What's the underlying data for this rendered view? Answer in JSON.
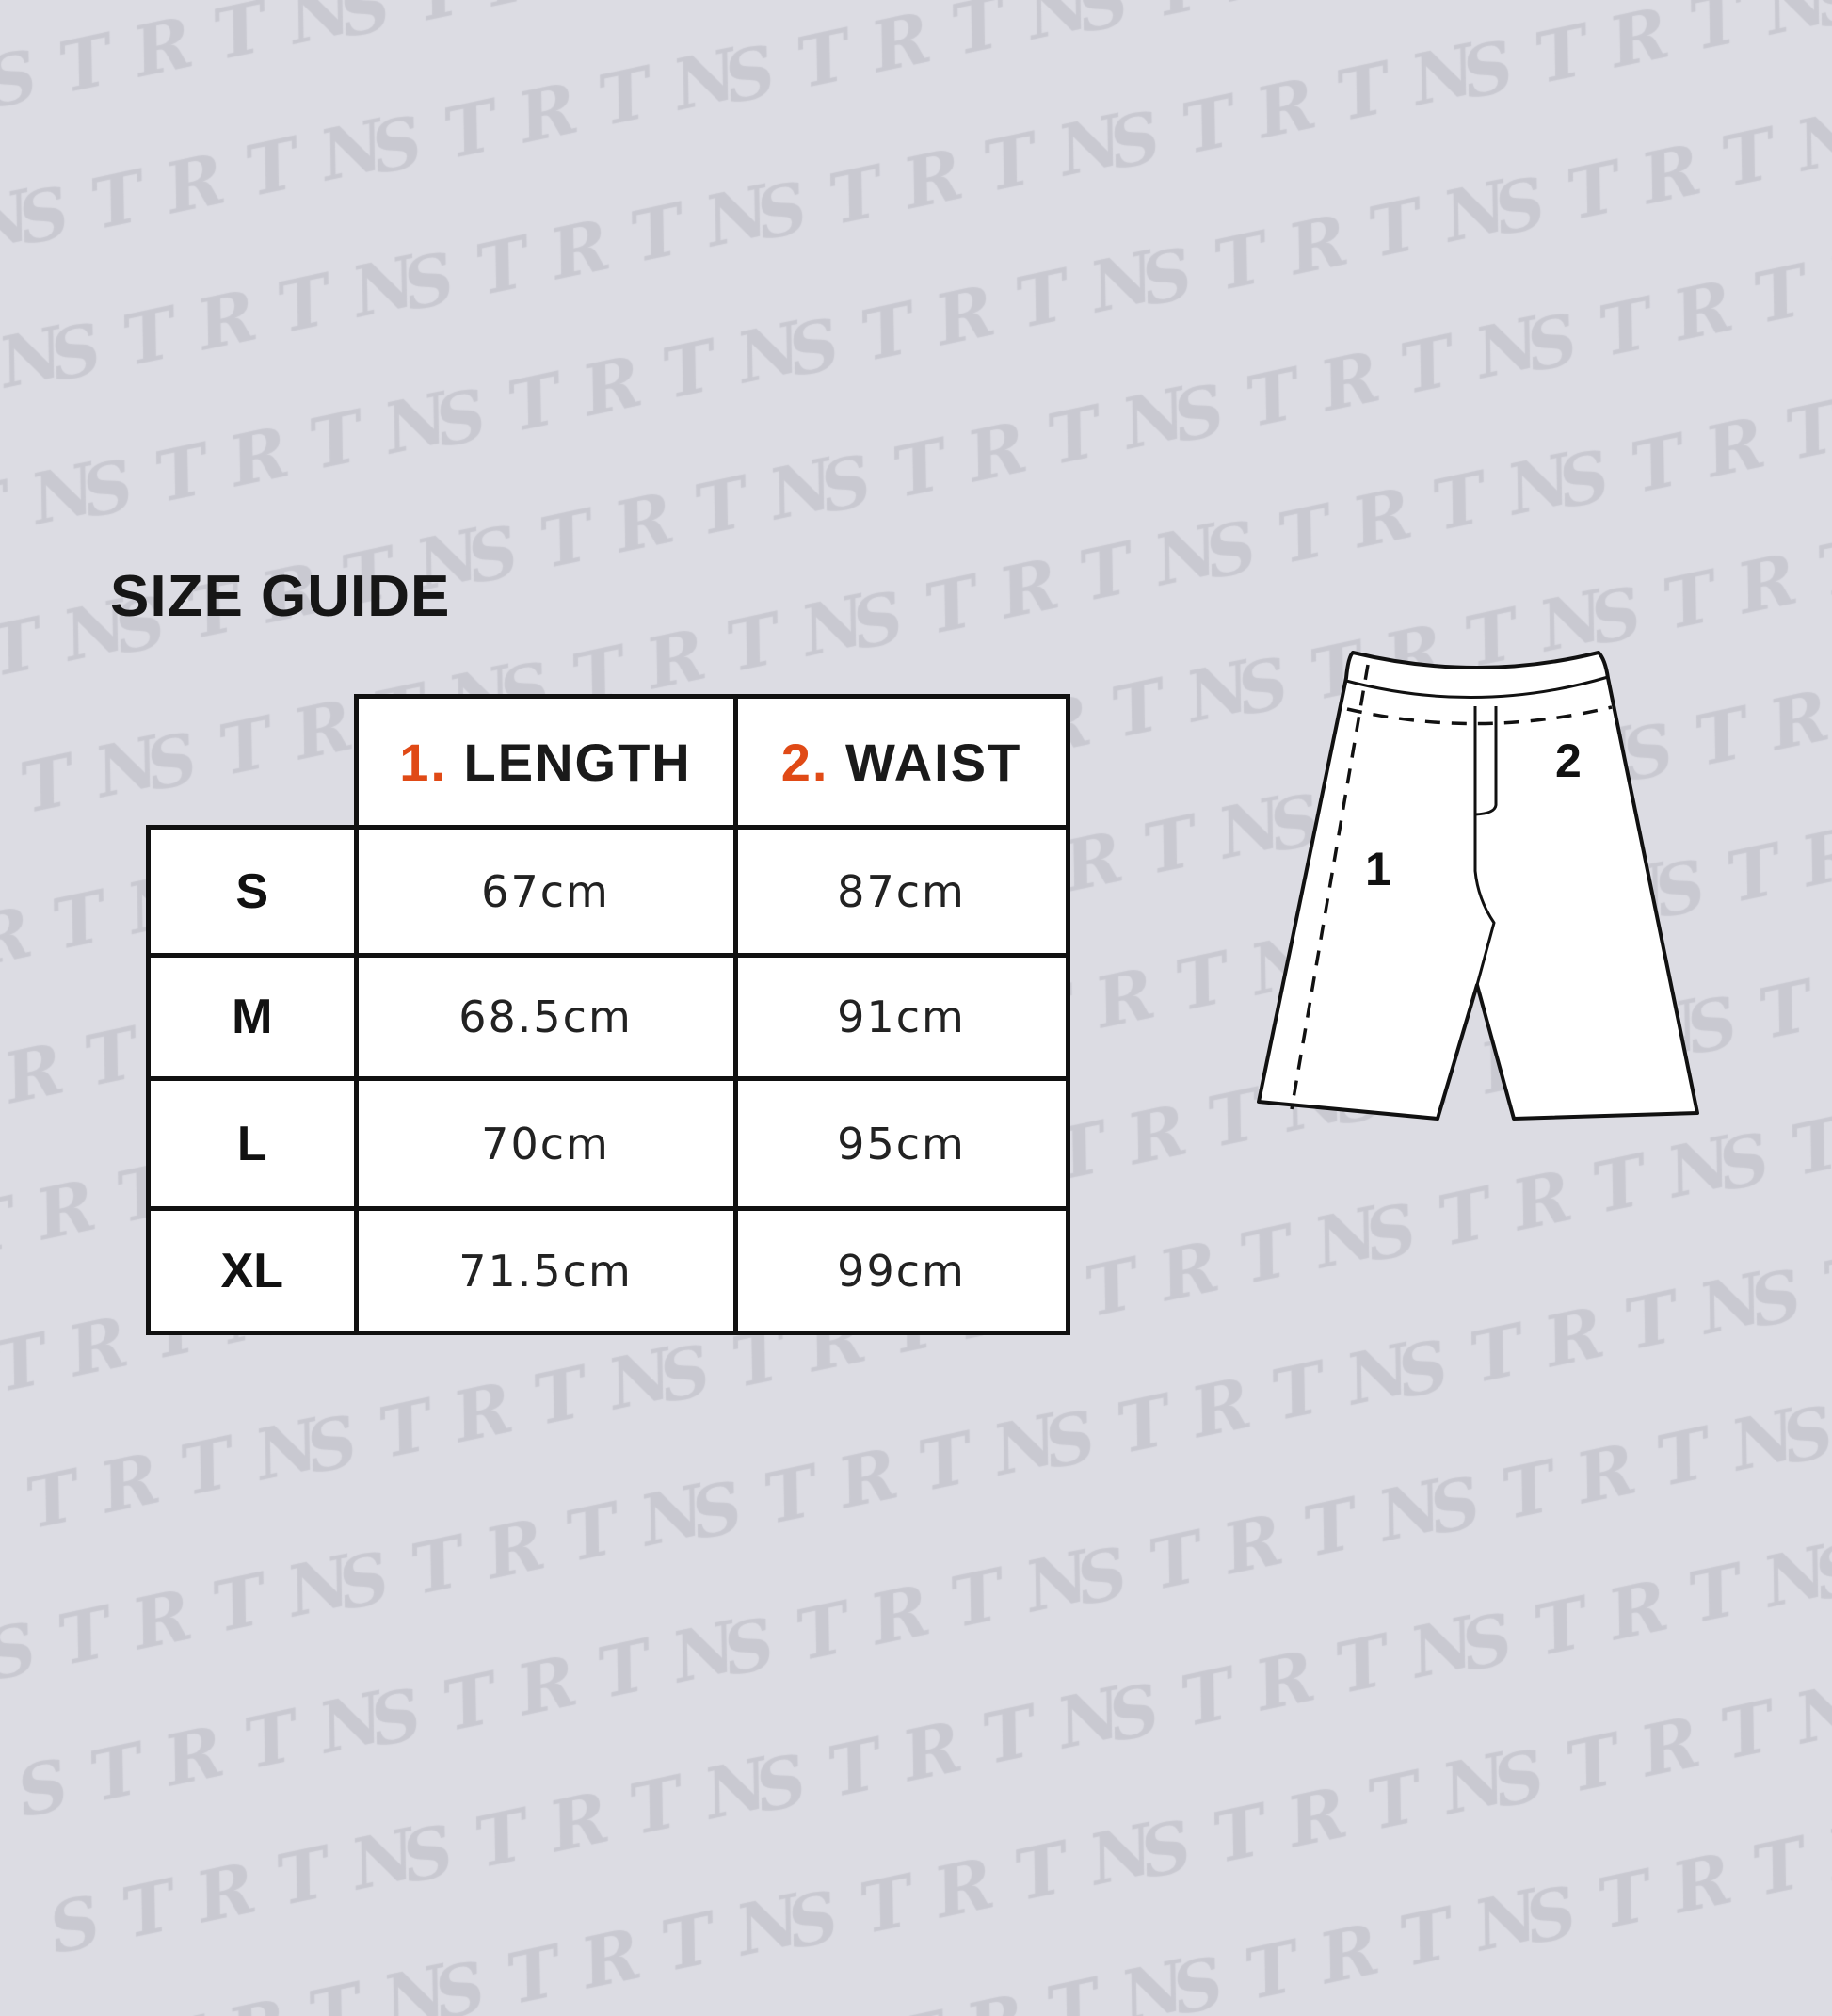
{
  "watermark": "STRTN",
  "title": "SIZE GUIDE",
  "accent_color": "#e04a16",
  "table": {
    "headers": [
      {
        "num": "1.",
        "label": "LENGTH"
      },
      {
        "num": "2.",
        "label": "WAIST"
      }
    ],
    "rows": [
      {
        "size": "S",
        "length": "67cm",
        "waist": "87cm"
      },
      {
        "size": "M",
        "length": "68.5cm",
        "waist": "91cm"
      },
      {
        "size": "L",
        "length": "70cm",
        "waist": "95cm"
      },
      {
        "size": "XL",
        "length": "71.5cm",
        "waist": "99cm"
      }
    ]
  },
  "diagram": {
    "label_length": "1",
    "label_waist": "2"
  }
}
